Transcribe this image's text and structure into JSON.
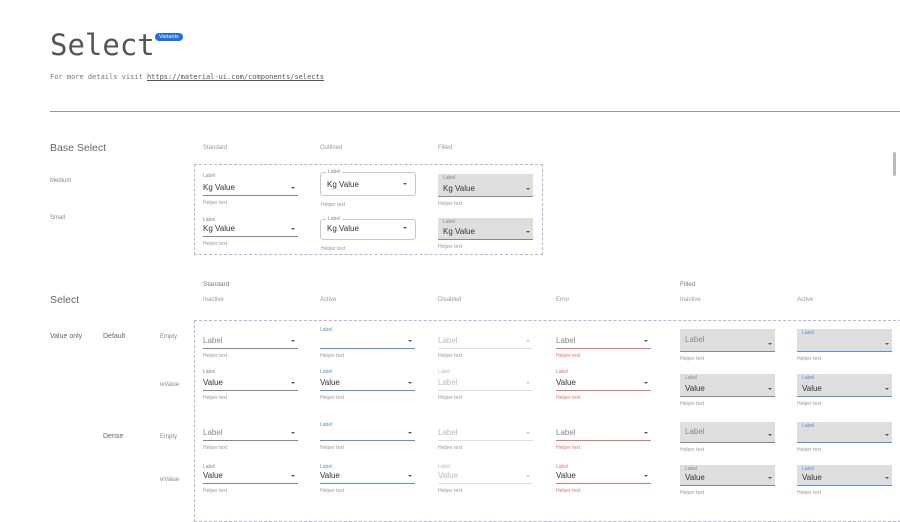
{
  "header": {
    "title": "Select",
    "badge": "Variants",
    "subtitle_prefix": "For more details visit ",
    "link": "https://material-ui.com/components/selects"
  },
  "base_select": {
    "title": "Base Select",
    "columns": [
      "Standard",
      "Outlined",
      "Filled"
    ],
    "rows": [
      {
        "name": "Medium",
        "label": "Label",
        "prefix": "Kg",
        "value": "Value",
        "helper": "Helper text"
      },
      {
        "name": "Small",
        "label": "Label",
        "prefix": "Kg",
        "value": "Value",
        "helper": "Helper text"
      }
    ]
  },
  "select": {
    "title": "Select",
    "group_standard": "Standard",
    "group_filled": "Filled",
    "columns": [
      "Inactive",
      "Active",
      "Disabled",
      "Error",
      "Inactive",
      "Active"
    ],
    "section_label": "Value only",
    "groups": [
      "Default",
      "Dense"
    ],
    "row_labels": [
      "Empty",
      "wValue"
    ],
    "cells": {
      "empty": [
        {
          "value": "Label",
          "helper": "Helper text"
        },
        {
          "label": "Label",
          "helper": "Helper text"
        },
        {
          "value": "Label",
          "helper": "Helper text"
        },
        {
          "value": "Label",
          "helper": "Helper text"
        },
        {
          "value": "Label",
          "helper": "Helper text"
        },
        {
          "label": "Label",
          "helper": "Helper text"
        }
      ],
      "default_wvalue": [
        {
          "label": "Label",
          "value": "Value",
          "helper": "Helper text"
        },
        {
          "label": "Label",
          "value": "Value",
          "helper": "Helper text"
        },
        {
          "label": "Label",
          "value": "Label",
          "helper": "Helper text"
        },
        {
          "label": "Label",
          "value": "Value",
          "helper": "Helper text"
        },
        {
          "label": "Label",
          "value": "Value",
          "helper": "Helper text"
        },
        {
          "label": "Label",
          "value": "Value",
          "helper": "Helper text"
        }
      ],
      "dense_wvalue": [
        {
          "label": "Label",
          "value": "Value",
          "helper": "Helper text"
        },
        {
          "label": "Label",
          "value": "Value",
          "helper": "Helper text"
        },
        {
          "label": "Label",
          "value": "Value",
          "helper": "Helper text"
        },
        {
          "label": "Label",
          "value": "Value",
          "helper": "Helper text"
        },
        {
          "label": "Label",
          "value": "Value",
          "helper": "Helper text"
        },
        {
          "label": "Label",
          "value": "Value",
          "helper": "Helper text"
        }
      ]
    }
  },
  "colors": {
    "accent": "#5b8de0",
    "error": "#e57373",
    "badge": "#1e6fe6",
    "filled_bg": "#dedede"
  }
}
